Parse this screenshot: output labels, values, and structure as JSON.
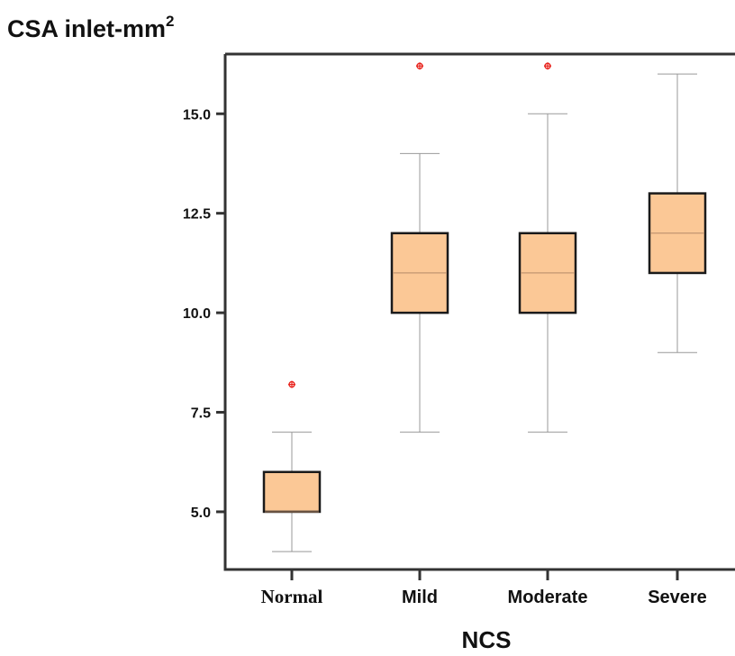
{
  "chart_data": {
    "type": "box",
    "ylabel": "CSA inlet-mm",
    "ylabel_superscript": "2",
    "xlabel": "NCS",
    "ylim": [
      3.55,
      16.5
    ],
    "yticks": [
      "5.0",
      "7.5",
      "10.0",
      "12.5",
      "15.0"
    ],
    "ytick_values": [
      5.0,
      7.5,
      10.0,
      12.5,
      15.0
    ],
    "categories": [
      "Normal",
      "Mild",
      "Moderate",
      "Severe"
    ],
    "boxes": [
      {
        "category": "Normal",
        "min": 4.0,
        "q1": 5.0,
        "median": 5.0,
        "q3": 6.0,
        "max": 7.0,
        "outliers": [
          8.2
        ]
      },
      {
        "category": "Mild",
        "min": 7.0,
        "q1": 10.0,
        "median": 11.0,
        "q3": 12.0,
        "max": 14.0,
        "outliers": [
          16.2
        ]
      },
      {
        "category": "Moderate",
        "min": 7.0,
        "q1": 10.0,
        "median": 11.0,
        "q3": 12.0,
        "max": 15.0,
        "outliers": [
          16.2
        ]
      },
      {
        "category": "Severe",
        "min": 9.0,
        "q1": 11.0,
        "median": 12.0,
        "q3": 13.0,
        "max": 16.0,
        "outliers": []
      }
    ],
    "colors": {
      "box_fill": "#fbc896",
      "box_edge": "#1a1a1a",
      "median": "#b58a68",
      "whisker": "#999999",
      "outlier": "#e8251e",
      "axis": "#333333"
    },
    "grid": false,
    "legend": "none"
  }
}
